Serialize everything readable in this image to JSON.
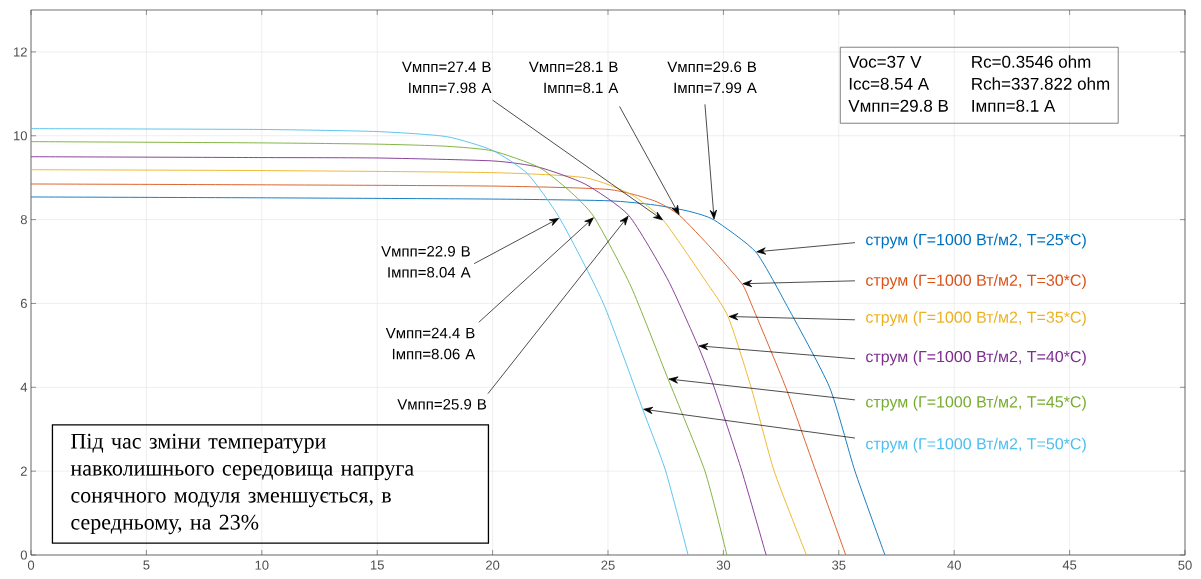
{
  "chart_data": {
    "type": "line",
    "xlim": [
      0,
      50
    ],
    "ylim": [
      0,
      13
    ],
    "xticks": [
      0,
      5,
      10,
      15,
      20,
      25,
      30,
      35,
      40,
      45,
      50
    ],
    "yticks": [
      0,
      2,
      4,
      6,
      8,
      10,
      12
    ],
    "grid": true,
    "legend": false,
    "marker": "none",
    "line_style": "solid",
    "series": [
      {
        "name": "струм (Г=1000 Вт/м2, T=25*C)",
        "color": "#0072bd",
        "x": [
          0,
          10,
          20,
          25,
          27,
          28.5,
          29.6,
          31.4,
          32.7,
          34.6,
          35.7,
          37
        ],
        "values": [
          8.54,
          8.52,
          8.49,
          8.45,
          8.35,
          8.2,
          7.99,
          7.23,
          6,
          4,
          2,
          0
        ]
      },
      {
        "name": "струм (Г=1000 Вт/м2, T=30*C)",
        "color": "#d95319",
        "x": [
          0,
          10,
          20,
          25,
          27,
          28.1,
          29.5,
          30.8,
          31.2,
          32.7,
          34,
          35.3
        ],
        "values": [
          8.85,
          8.83,
          8.8,
          8.72,
          8.45,
          8.1,
          7.3,
          6.47,
          6,
          4,
          2,
          0
        ]
      },
      {
        "name": "струм (Г=1000 Вт/м2, T=35*C)",
        "color": "#edb120",
        "x": [
          0,
          10,
          20,
          24,
          26,
          27.4,
          29.2,
          30.2,
          31.2,
          32.2,
          33.6
        ],
        "values": [
          9.19,
          9.17,
          9.12,
          9.0,
          8.6,
          7.98,
          6.56,
          5.69,
          4,
          2,
          0
        ]
      },
      {
        "name": "струм (Г=1000 Вт/м2, T=40*C)",
        "color": "#7e2f8e",
        "x": [
          0,
          10,
          15,
          20,
          22,
          24,
          25.9,
          27.6,
          28.9,
          29.6,
          30.8,
          31.85
        ],
        "values": [
          9.5,
          9.48,
          9.47,
          9.4,
          9.25,
          8.85,
          8.1,
          6.56,
          4.99,
          4,
          2,
          0
        ]
      },
      {
        "name": "струм (Г=1000 Вт/м2, T=45*C)",
        "color": "#77ac30",
        "x": [
          0,
          10,
          15,
          18,
          20,
          22,
          23.3,
          24.4,
          26,
          27.6,
          29.2,
          30.15
        ],
        "values": [
          9.86,
          9.83,
          9.8,
          9.75,
          9.64,
          9.25,
          8.7,
          8.06,
          6.4,
          4.2,
          2,
          0
        ]
      },
      {
        "name": "струм (Г=1000 Вт/м2, T=50*C)",
        "color": "#4dbeee",
        "x": [
          0,
          10,
          15,
          18,
          20,
          21.5,
          22.9,
          24.8,
          26.5,
          27.5,
          28.47
        ],
        "values": [
          10.17,
          10.15,
          10.1,
          9.98,
          9.65,
          9.1,
          8.04,
          6,
          3.48,
          2,
          0
        ]
      }
    ],
    "annotations": [
      {
        "text": "Vмпп=29.6 В Iмпп=7.99 A",
        "x": 29.6,
        "y": 7.99
      },
      {
        "text": "Vмпп=28.1 В Iмпп=8.1 A",
        "x": 28.1,
        "y": 8.1
      },
      {
        "text": "Vмпп=27.4 В Iмпп=7.98 A",
        "x": 27.4,
        "y": 7.98
      },
      {
        "text": "Vмпп=25.9 В",
        "x": 25.9,
        "y": 8.1
      },
      {
        "text": "Vмпп=24.4 В Iмпп=8.06 A",
        "x": 24.4,
        "y": 8.06
      },
      {
        "text": "Vмпп=22.9 В Iмпп=8.04 A",
        "x": 22.9,
        "y": 8.04
      },
      "Voc=37 V",
      "Rc=0.3546 ohm",
      "Icc=8.54 A",
      "Rch=337.822 ohm",
      "Vмпп=29.8 В",
      "Iмпп=8.1 A",
      "Під час зміни температури навколишнього середовища напруга сонячного модуля зменшується, в середньому, на 23%"
    ]
  }
}
